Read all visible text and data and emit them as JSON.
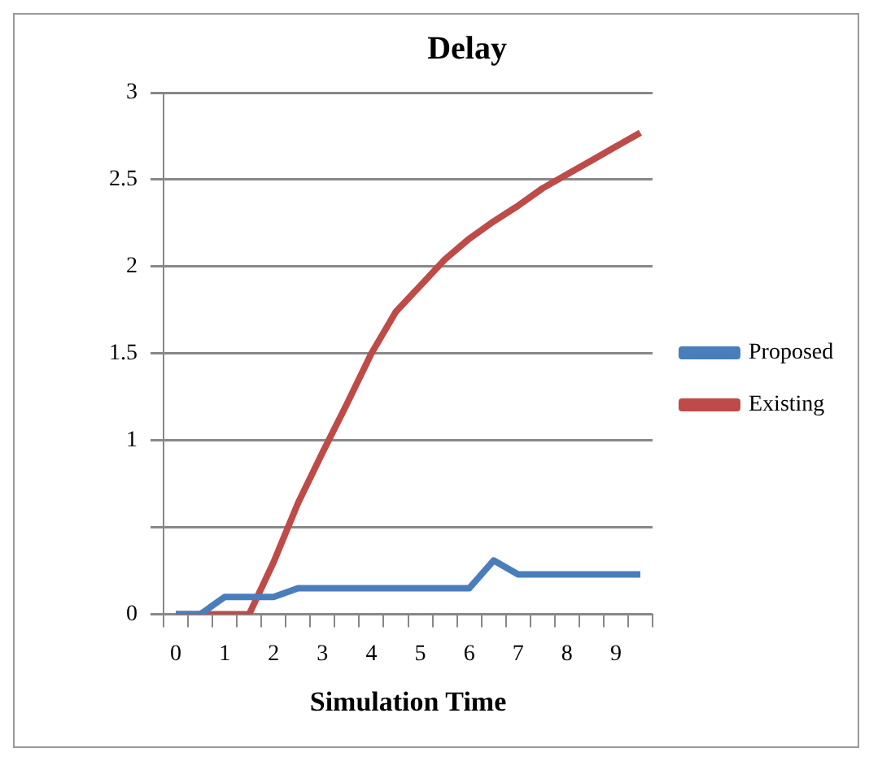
{
  "chart_data": {
    "type": "line",
    "title": "Delay",
    "xlabel": "Simulation Time",
    "categories": [
      "0",
      null,
      "1",
      null,
      "2",
      null,
      "3",
      null,
      "4",
      null,
      "5",
      null,
      "6",
      null,
      "7",
      null,
      "8",
      null,
      "9",
      null
    ],
    "series": [
      {
        "name": "Proposed",
        "color": "#4a7ebb",
        "values": [
          0,
          0,
          0.1,
          0.1,
          0.1,
          0.15,
          0.15,
          0.15,
          0.15,
          0.15,
          0.15,
          0.15,
          0.15,
          0.31,
          0.23,
          0.23,
          0.23,
          0.23,
          0.23,
          0.23
        ]
      },
      {
        "name": "Existing",
        "color": "#be4b48",
        "values": [
          0,
          0,
          0,
          0,
          0.3,
          0.64,
          0.93,
          1.21,
          1.5,
          1.74,
          1.89,
          2.04,
          2.16,
          2.26,
          2.35,
          2.45,
          2.53,
          2.61,
          2.69,
          2.77
        ]
      }
    ],
    "ylim": [
      0,
      3
    ],
    "yticks": [
      0,
      {
        "value": 0.5,
        "label": null
      },
      1,
      1.5,
      2,
      2.5,
      3
    ],
    "grid": "y",
    "legend": "right",
    "marker": "none",
    "line_style": "solid"
  }
}
